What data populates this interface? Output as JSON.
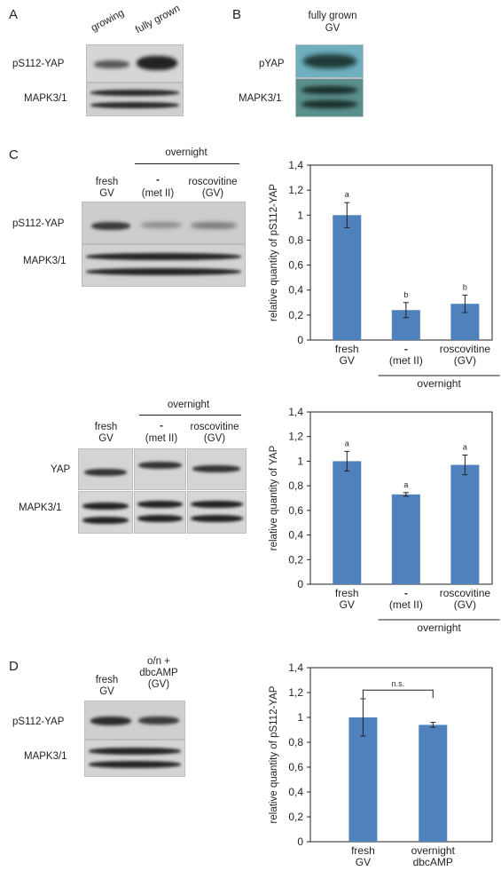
{
  "panel_a": {
    "letter": "A",
    "columns": [
      "growing",
      "fully grown"
    ],
    "rows": [
      "pS112-YAP",
      "MAPK3/1"
    ]
  },
  "panel_b": {
    "letter": "B",
    "header": [
      "fully grown",
      "GV"
    ],
    "rows": [
      "pYAP",
      "MAPK3/1"
    ]
  },
  "panel_c": {
    "letter": "C",
    "blot1": {
      "group_label": "overnight",
      "cols": [
        [
          "fresh",
          "GV"
        ],
        [
          "-",
          "(met II)"
        ],
        [
          "roscovitine",
          "(GV)"
        ]
      ],
      "rows": [
        "pS112-YAP",
        "MAPK3/1"
      ]
    },
    "blot2": {
      "group_label": "overnight",
      "cols": [
        [
          "fresh",
          "GV"
        ],
        [
          "-",
          "(met II)"
        ],
        [
          "roscovitine",
          "(GV)"
        ]
      ],
      "rows": [
        "YAP",
        "MAPK3/1"
      ]
    }
  },
  "panel_d": {
    "letter": "D",
    "cols": [
      [
        "fresh",
        "GV"
      ],
      [
        "o/n +",
        "dbcAMP",
        "(GV)"
      ]
    ],
    "rows": [
      "pS112-YAP",
      "MAPK3/1"
    ]
  },
  "chart_data": [
    {
      "type": "bar",
      "ylabel": "relative quantity of pS112-YAP",
      "ylim": [
        0,
        1.4
      ],
      "yticks": [
        "0",
        "0,2",
        "0,4",
        "0,6",
        "0,8",
        "1",
        "1,2",
        "1,4"
      ],
      "categories": [
        [
          "fresh",
          "GV"
        ],
        [
          "-",
          "(met II)"
        ],
        [
          "roscovitine",
          "(GV)"
        ]
      ],
      "values": [
        1.0,
        0.24,
        0.29
      ],
      "errors": [
        0.1,
        0.06,
        0.07
      ],
      "letters": [
        "a",
        "b",
        "b"
      ],
      "group_label": "overnight",
      "color": "#4f81bd"
    },
    {
      "type": "bar",
      "ylabel": "relative quantity of YAP",
      "ylim": [
        0,
        1.4
      ],
      "yticks": [
        "0",
        "0,2",
        "0,4",
        "0,6",
        "0,8",
        "1",
        "1,2",
        "1,4"
      ],
      "categories": [
        [
          "fresh",
          "GV"
        ],
        [
          "-",
          "(met II)"
        ],
        [
          "roscovitine",
          "(GV)"
        ]
      ],
      "values": [
        1.0,
        0.73,
        0.97
      ],
      "errors": [
        0.08,
        0.015,
        0.08
      ],
      "letters": [
        "a",
        "a",
        "a"
      ],
      "group_label": "overnight",
      "color": "#4f81bd"
    },
    {
      "type": "bar",
      "ylabel": "relative quantity of pS112-YAP",
      "ylim": [
        0,
        1.4
      ],
      "yticks": [
        "0",
        "0,2",
        "0,4",
        "0,6",
        "0,8",
        "1",
        "1,2",
        "1,4"
      ],
      "categories": [
        [
          "fresh",
          "GV"
        ],
        [
          "overnight",
          "dbcAMP"
        ]
      ],
      "values": [
        1.0,
        0.94
      ],
      "errors": [
        0.15,
        0.02
      ],
      "annotation": "n.s.",
      "color": "#4f81bd"
    }
  ]
}
